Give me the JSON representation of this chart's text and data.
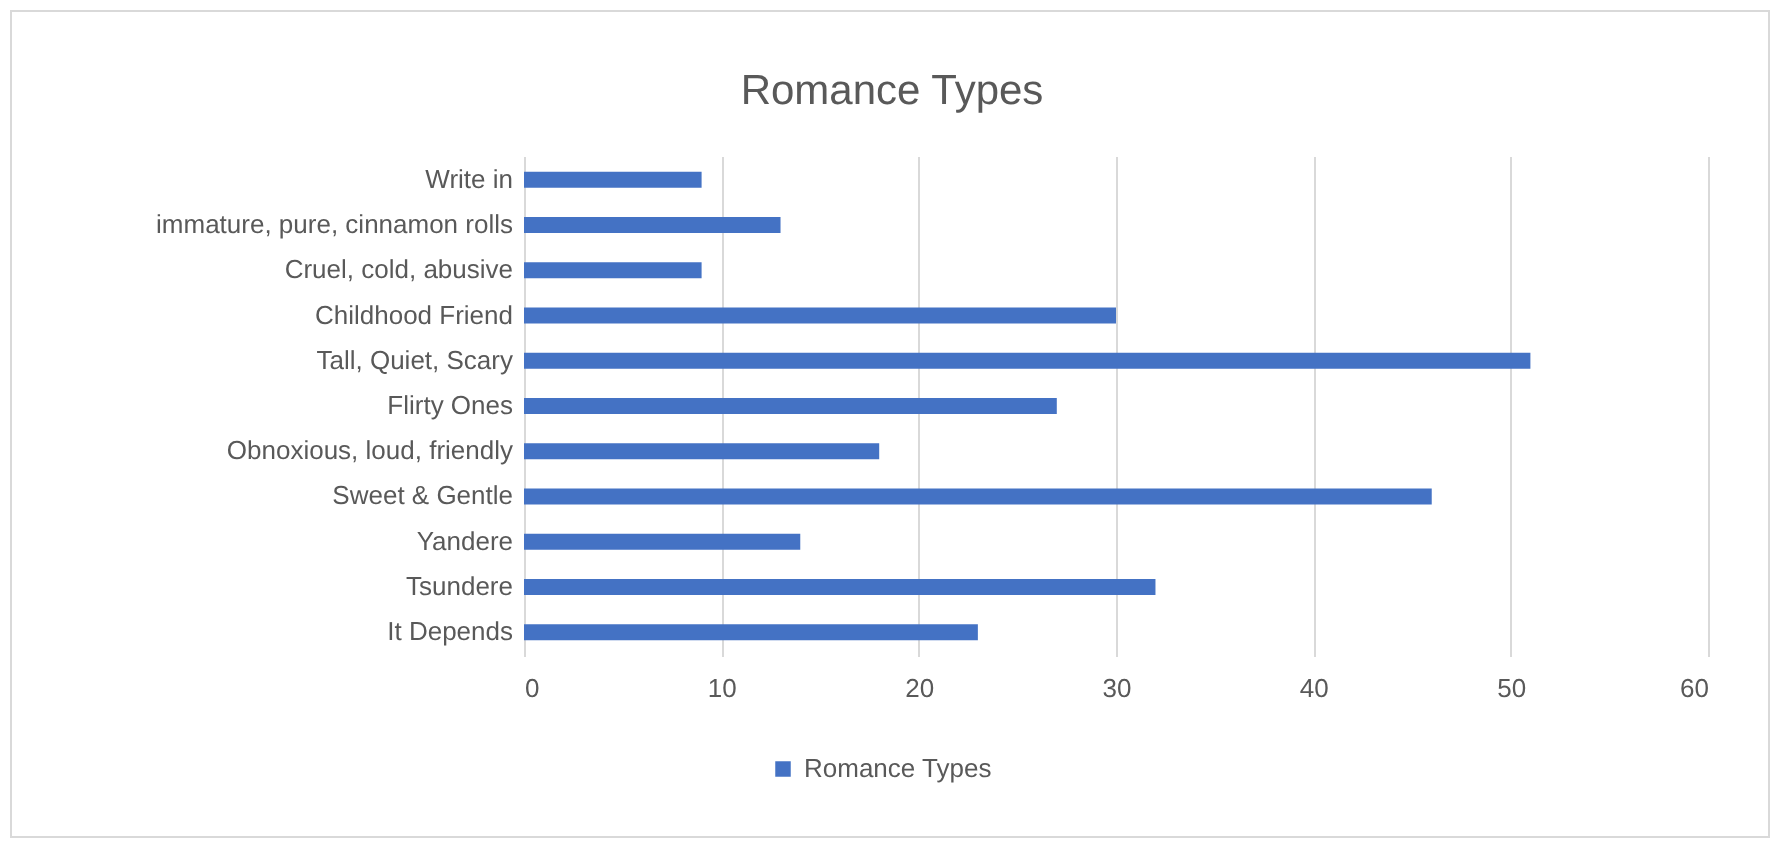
{
  "chart_data": {
    "type": "bar",
    "title": "Romance Types",
    "orientation": "horizontal",
    "categories": [
      "Write in",
      "immature, pure, cinnamon rolls",
      "Cruel, cold, abusive",
      "Childhood Friend",
      "Tall, Quiet, Scary",
      "Flirty Ones",
      "Obnoxious, loud, friendly",
      "Sweet & Gentle",
      "Yandere",
      "Tsundere",
      "It Depends"
    ],
    "series": [
      {
        "name": "Romance Types",
        "color": "#4472c4",
        "values": [
          9,
          13,
          9,
          30,
          51,
          27,
          18,
          46,
          14,
          32,
          23
        ]
      }
    ],
    "xlim": [
      0,
      60
    ],
    "xticks": [
      0,
      10,
      20,
      30,
      40,
      50,
      60
    ],
    "grid": "x",
    "legend": "bottom"
  }
}
